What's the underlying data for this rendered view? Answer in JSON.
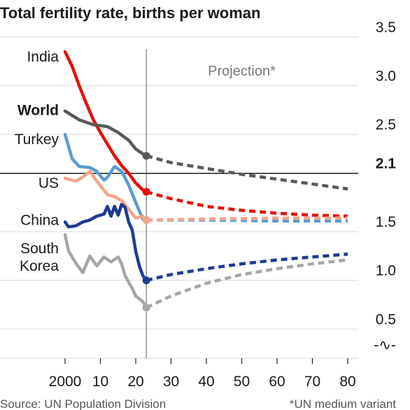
{
  "chart_data": {
    "type": "line",
    "title": "Total fertility rate, births per woman",
    "projection_label": "Projection*",
    "projection_start": 2023,
    "source": "Source: UN Population Division",
    "footnote": "*UN medium variant",
    "xlim": [
      2000,
      2080
    ],
    "ylim": [
      0.2,
      3.5
    ],
    "x_ticks": [
      {
        "value": 2000,
        "label": "2000"
      },
      {
        "value": 2010,
        "label": "10"
      },
      {
        "value": 2020,
        "label": "20"
      },
      {
        "value": 2030,
        "label": "30"
      },
      {
        "value": 2040,
        "label": "40"
      },
      {
        "value": 2050,
        "label": "50"
      },
      {
        "value": 2060,
        "label": "60"
      },
      {
        "value": 2070,
        "label": "70"
      },
      {
        "value": 2080,
        "label": "80"
      }
    ],
    "y_ticks": [
      {
        "value": 3.5,
        "label": "3.5"
      },
      {
        "value": 3.0,
        "label": "3.0"
      },
      {
        "value": 2.5,
        "label": "2.5"
      },
      {
        "value": 1.5,
        "label": "1.5"
      },
      {
        "value": 1.0,
        "label": "1.0"
      },
      {
        "value": 0.5,
        "label": "0.5"
      }
    ],
    "reference_line": {
      "value": 2.1,
      "label": "2.1"
    },
    "axis_break_symbol": "-∿-",
    "series": [
      {
        "name": "India",
        "color": "#e3120b",
        "label_y": 3.3,
        "history": [
          [
            2000,
            3.35
          ],
          [
            2002,
            3.2
          ],
          [
            2004,
            3.0
          ],
          [
            2006,
            2.82
          ],
          [
            2008,
            2.65
          ],
          [
            2010,
            2.52
          ],
          [
            2012,
            2.4
          ],
          [
            2014,
            2.28
          ],
          [
            2016,
            2.18
          ],
          [
            2018,
            2.1
          ],
          [
            2020,
            2.0
          ],
          [
            2022,
            1.93
          ],
          [
            2023,
            1.91
          ]
        ],
        "projection": [
          [
            2023,
            1.91
          ],
          [
            2030,
            1.84
          ],
          [
            2040,
            1.76
          ],
          [
            2050,
            1.72
          ],
          [
            2060,
            1.69
          ],
          [
            2070,
            1.67
          ],
          [
            2080,
            1.66
          ]
        ]
      },
      {
        "name": "World",
        "color": "#595959",
        "bold": true,
        "label_y": 2.75,
        "history": [
          [
            2000,
            2.74
          ],
          [
            2004,
            2.65
          ],
          [
            2008,
            2.6
          ],
          [
            2012,
            2.58
          ],
          [
            2015,
            2.52
          ],
          [
            2018,
            2.44
          ],
          [
            2020,
            2.35
          ],
          [
            2022,
            2.3
          ],
          [
            2023,
            2.28
          ]
        ],
        "projection": [
          [
            2023,
            2.28
          ],
          [
            2030,
            2.21
          ],
          [
            2040,
            2.15
          ],
          [
            2050,
            2.09
          ],
          [
            2060,
            2.04
          ],
          [
            2070,
            1.99
          ],
          [
            2080,
            1.94
          ]
        ]
      },
      {
        "name": "Turkey",
        "color": "#5b9bd5",
        "label_y": 2.45,
        "history": [
          [
            2000,
            2.5
          ],
          [
            2002,
            2.25
          ],
          [
            2004,
            2.17
          ],
          [
            2007,
            2.16
          ],
          [
            2009,
            2.12
          ],
          [
            2011,
            2.03
          ],
          [
            2012,
            2.06
          ],
          [
            2014,
            2.17
          ],
          [
            2016,
            2.12
          ],
          [
            2018,
            1.98
          ],
          [
            2020,
            1.8
          ],
          [
            2022,
            1.63
          ],
          [
            2023,
            1.62
          ]
        ],
        "projection": [
          [
            2023,
            1.62
          ],
          [
            2040,
            1.62
          ],
          [
            2060,
            1.61
          ],
          [
            2080,
            1.61
          ]
        ]
      },
      {
        "name": "US",
        "color": "#f3a58b",
        "label_y": 2.0,
        "history": [
          [
            2000,
            2.05
          ],
          [
            2003,
            2.02
          ],
          [
            2005,
            2.06
          ],
          [
            2007,
            2.12
          ],
          [
            2009,
            2.02
          ],
          [
            2012,
            1.88
          ],
          [
            2014,
            1.86
          ],
          [
            2016,
            1.82
          ],
          [
            2018,
            1.73
          ],
          [
            2020,
            1.64
          ],
          [
            2022,
            1.66
          ],
          [
            2023,
            1.62
          ]
        ],
        "projection": [
          [
            2023,
            1.62
          ],
          [
            2040,
            1.63
          ],
          [
            2060,
            1.64
          ],
          [
            2080,
            1.64
          ]
        ]
      },
      {
        "name": "China",
        "color": "#1f3a93",
        "label_y": 1.62,
        "history": [
          [
            2000,
            1.6
          ],
          [
            2001,
            1.55
          ],
          [
            2003,
            1.56
          ],
          [
            2005,
            1.6
          ],
          [
            2007,
            1.62
          ],
          [
            2009,
            1.66
          ],
          [
            2011,
            1.68
          ],
          [
            2012,
            1.76
          ],
          [
            2013,
            1.66
          ],
          [
            2014,
            1.76
          ],
          [
            2015,
            1.67
          ],
          [
            2016,
            1.78
          ],
          [
            2017,
            1.75
          ],
          [
            2018,
            1.6
          ],
          [
            2019,
            1.52
          ],
          [
            2020,
            1.3
          ],
          [
            2021,
            1.15
          ],
          [
            2022,
            1.05
          ],
          [
            2023,
            1.0
          ]
        ],
        "projection": [
          [
            2023,
            1.0
          ],
          [
            2030,
            1.06
          ],
          [
            2040,
            1.12
          ],
          [
            2050,
            1.17
          ],
          [
            2060,
            1.21
          ],
          [
            2070,
            1.24
          ],
          [
            2080,
            1.27
          ]
        ]
      },
      {
        "name": "South\nKorea",
        "color": "#a6a6a6",
        "label_y": 1.33,
        "history": [
          [
            2000,
            1.47
          ],
          [
            2001,
            1.3
          ],
          [
            2003,
            1.18
          ],
          [
            2005,
            1.08
          ],
          [
            2007,
            1.25
          ],
          [
            2009,
            1.15
          ],
          [
            2011,
            1.24
          ],
          [
            2013,
            1.19
          ],
          [
            2015,
            1.24
          ],
          [
            2016,
            1.17
          ],
          [
            2017,
            1.05
          ],
          [
            2018,
            0.98
          ],
          [
            2019,
            0.92
          ],
          [
            2020,
            0.84
          ],
          [
            2021,
            0.81
          ],
          [
            2022,
            0.78
          ],
          [
            2023,
            0.72
          ]
        ],
        "projection": [
          [
            2023,
            0.72
          ],
          [
            2030,
            0.84
          ],
          [
            2040,
            0.97
          ],
          [
            2050,
            1.06
          ],
          [
            2060,
            1.12
          ],
          [
            2070,
            1.17
          ],
          [
            2080,
            1.21
          ]
        ]
      }
    ]
  }
}
